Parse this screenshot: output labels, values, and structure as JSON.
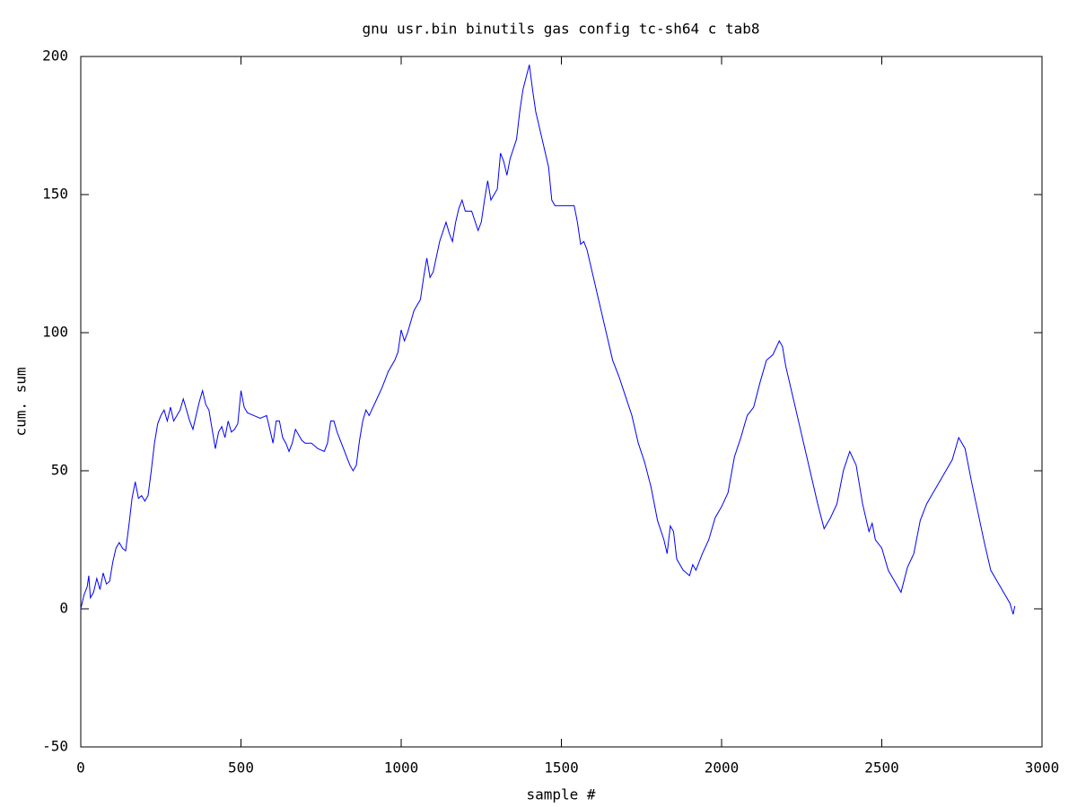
{
  "chart_data": {
    "type": "line",
    "title": "gnu usr.bin binutils gas config tc-sh64 c tab8",
    "x_label": "sample #",
    "y_label": "cum. sum",
    "xlim": [
      0,
      3000
    ],
    "xticks": [
      0,
      500,
      1000,
      1500,
      2000,
      2500,
      3000
    ],
    "ylim": [
      -50,
      200
    ],
    "yticks": [
      -50,
      0,
      50,
      100,
      150,
      200
    ],
    "series": [
      {
        "color": "#0000ff",
        "x": [
          0,
          10,
          20,
          25,
          30,
          40,
          50,
          60,
          70,
          80,
          90,
          100,
          110,
          120,
          130,
          140,
          150,
          160,
          170,
          180,
          190,
          200,
          210,
          220,
          230,
          240,
          250,
          260,
          270,
          280,
          290,
          300,
          310,
          320,
          330,
          340,
          350,
          360,
          370,
          380,
          390,
          400,
          410,
          420,
          430,
          440,
          450,
          460,
          470,
          480,
          490,
          500,
          510,
          520,
          540,
          560,
          580,
          590,
          600,
          610,
          620,
          630,
          640,
          650,
          660,
          670,
          680,
          690,
          700,
          720,
          740,
          760,
          770,
          780,
          790,
          800,
          820,
          840,
          850,
          860,
          870,
          880,
          890,
          900,
          920,
          940,
          960,
          980,
          990,
          1000,
          1010,
          1020,
          1040,
          1060,
          1070,
          1080,
          1090,
          1100,
          1120,
          1140,
          1150,
          1160,
          1170,
          1180,
          1190,
          1200,
          1220,
          1240,
          1250,
          1260,
          1270,
          1280,
          1300,
          1310,
          1320,
          1330,
          1340,
          1360,
          1370,
          1380,
          1400,
          1410,
          1420,
          1440,
          1460,
          1470,
          1480,
          1500,
          1520,
          1540,
          1550,
          1560,
          1570,
          1580,
          1600,
          1620,
          1640,
          1660,
          1680,
          1700,
          1720,
          1740,
          1760,
          1780,
          1800,
          1820,
          1830,
          1840,
          1850,
          1860,
          1880,
          1900,
          1910,
          1920,
          1940,
          1960,
          1980,
          2000,
          2020,
          2040,
          2060,
          2080,
          2100,
          2120,
          2140,
          2160,
          2180,
          2190,
          2200,
          2220,
          2240,
          2260,
          2280,
          2300,
          2320,
          2340,
          2360,
          2380,
          2400,
          2420,
          2440,
          2460,
          2470,
          2480,
          2500,
          2520,
          2540,
          2560,
          2580,
          2600,
          2620,
          2640,
          2660,
          2680,
          2700,
          2720,
          2740,
          2760,
          2780,
          2800,
          2820,
          2840,
          2860,
          2880,
          2900,
          2910,
          2915
        ],
        "values": [
          0,
          5,
          8,
          12,
          4,
          6,
          11,
          7,
          13,
          9,
          10,
          17,
          22,
          24,
          22,
          21,
          30,
          40,
          46,
          40,
          41,
          39,
          41,
          50,
          60,
          67,
          70,
          72,
          68,
          73,
          68,
          70,
          72,
          76,
          72,
          68,
          65,
          70,
          75,
          79,
          74,
          72,
          65,
          58,
          64,
          66,
          62,
          68,
          64,
          65,
          67,
          79,
          73,
          71,
          70,
          69,
          70,
          65,
          60,
          68,
          68,
          62,
          60,
          57,
          60,
          65,
          63,
          61,
          60,
          60,
          58,
          57,
          60,
          68,
          68,
          64,
          58,
          52,
          50,
          52,
          61,
          68,
          72,
          70,
          75,
          80,
          86,
          90,
          93,
          101,
          97,
          100,
          108,
          112,
          120,
          127,
          120,
          122,
          133,
          140,
          136,
          133,
          140,
          145,
          148,
          144,
          144,
          137,
          140,
          148,
          155,
          148,
          152,
          165,
          162,
          157,
          163,
          170,
          180,
          188,
          197,
          188,
          180,
          170,
          160,
          148,
          146,
          146,
          146,
          146,
          140,
          132,
          133,
          130,
          120,
          110,
          100,
          90,
          84,
          77,
          70,
          60,
          53,
          44,
          32,
          25,
          20,
          30,
          28,
          18,
          14,
          12,
          16,
          14,
          20,
          25,
          33,
          37,
          42,
          55,
          62,
          70,
          73,
          82,
          90,
          92,
          97,
          95,
          88,
          78,
          68,
          58,
          48,
          38,
          29,
          33,
          38,
          50,
          57,
          52,
          38,
          28,
          31,
          25,
          22,
          14,
          10,
          6,
          15,
          20,
          32,
          38,
          42,
          46,
          50,
          54,
          62,
          58,
          46,
          35,
          24,
          14,
          10,
          6,
          2,
          -2,
          1
        ]
      }
    ]
  }
}
